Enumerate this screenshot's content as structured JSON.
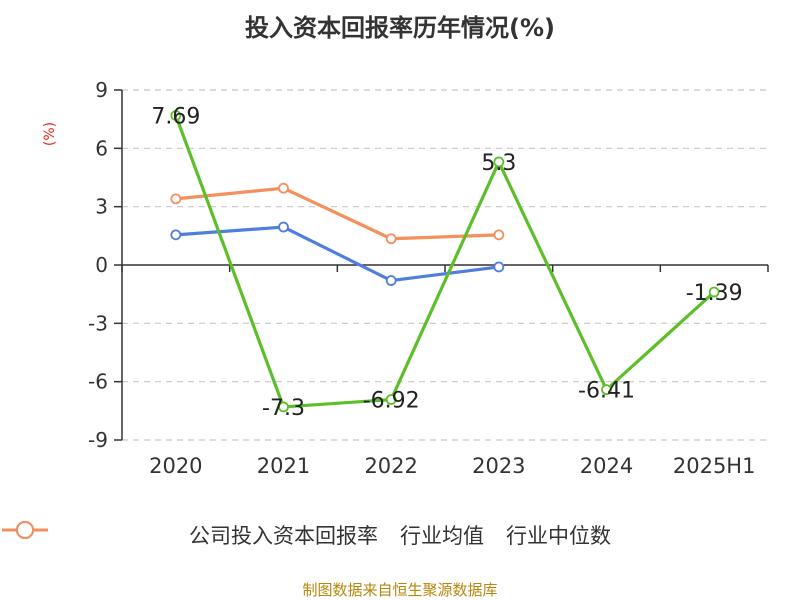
{
  "chart_data": {
    "type": "line",
    "title": "投入资本回报率历年情况(%)",
    "y_unit": "(%)",
    "categories": [
      "2020",
      "2021",
      "2022",
      "2023",
      "2024",
      "2025H1"
    ],
    "ylim": [
      -9,
      9
    ],
    "yticks": [
      9,
      6,
      3,
      0,
      -3,
      -6,
      -9
    ],
    "grid": true,
    "legend_position": "bottom",
    "series": [
      {
        "name": "公司投入资本回报率",
        "color": "#5cbf2a",
        "values": [
          7.69,
          -7.3,
          -6.92,
          5.3,
          -6.41,
          -1.39
        ],
        "labels": [
          "7.69",
          "-7.3",
          "-6.92",
          "5.3",
          "-6.41",
          "-1.39"
        ]
      },
      {
        "name": "行业均值",
        "color": "#4f7fdb",
        "values": [
          1.55,
          1.95,
          -0.8,
          -0.1,
          null,
          null
        ]
      },
      {
        "name": "行业中位数",
        "color": "#f58f5b",
        "values": [
          3.4,
          3.95,
          1.35,
          1.55,
          null,
          null
        ]
      }
    ]
  },
  "footer": {
    "source": "制图数据来自恒生聚源数据库"
  }
}
